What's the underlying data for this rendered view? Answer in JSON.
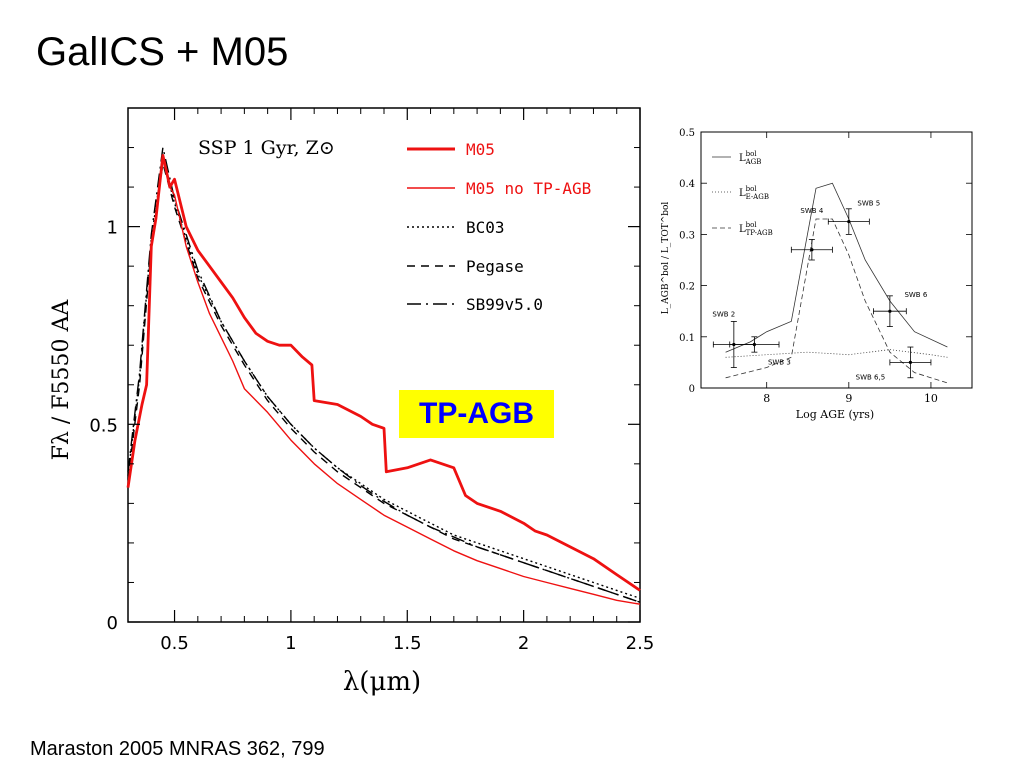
{
  "slide": {
    "title": "GalICS + M05",
    "citation": "Maraston 2005 MNRAS 362, 799",
    "highlight_label": "TP-AGB"
  },
  "colors": {
    "m05": "#ee1111",
    "black": "#000000",
    "highlight_bg": "#ffff00",
    "highlight_text": "#0000ff"
  },
  "chart_data": [
    {
      "type": "line",
      "title": "SSP 1 Gyr, Z⊙",
      "xlabel": "λ(μm)",
      "ylabel": "Fλ / F5550 AA",
      "xlim": [
        0.3,
        2.5
      ],
      "ylim": [
        0,
        1.3
      ],
      "x_ticks": [
        "0.5",
        "1",
        "1.5",
        "2",
        "2.5"
      ],
      "y_ticks": [
        "0",
        "0.5",
        "1"
      ],
      "legend_position": "top-right",
      "series": [
        {
          "name": "M05",
          "style": "solid-thick",
          "color": "#ee1111",
          "x": [
            0.3,
            0.33,
            0.36,
            0.38,
            0.4,
            0.42,
            0.45,
            0.48,
            0.5,
            0.55,
            0.6,
            0.65,
            0.7,
            0.75,
            0.8,
            0.85,
            0.9,
            0.95,
            1.0,
            1.05,
            1.09,
            1.1,
            1.2,
            1.3,
            1.35,
            1.4,
            1.41,
            1.5,
            1.6,
            1.7,
            1.75,
            1.8,
            1.9,
            2.0,
            2.05,
            2.1,
            2.2,
            2.3,
            2.4,
            2.5
          ],
          "y": [
            0.34,
            0.46,
            0.55,
            0.6,
            0.95,
            1.02,
            1.18,
            1.1,
            1.12,
            1.0,
            0.94,
            0.9,
            0.86,
            0.82,
            0.77,
            0.73,
            0.71,
            0.7,
            0.7,
            0.67,
            0.65,
            0.56,
            0.55,
            0.52,
            0.5,
            0.49,
            0.38,
            0.39,
            0.41,
            0.39,
            0.32,
            0.3,
            0.28,
            0.25,
            0.23,
            0.22,
            0.19,
            0.16,
            0.12,
            0.08
          ]
        },
        {
          "name": "M05 no TP-AGB",
          "style": "solid-thin",
          "color": "#ee1111",
          "x": [
            0.3,
            0.33,
            0.36,
            0.38,
            0.4,
            0.42,
            0.45,
            0.48,
            0.5,
            0.55,
            0.6,
            0.65,
            0.7,
            0.75,
            0.8,
            0.9,
            1.0,
            1.1,
            1.2,
            1.3,
            1.4,
            1.5,
            1.6,
            1.7,
            1.8,
            1.9,
            2.0,
            2.1,
            2.2,
            2.3,
            2.4,
            2.5
          ],
          "y": [
            0.34,
            0.46,
            0.55,
            0.6,
            0.95,
            1.02,
            1.18,
            1.1,
            1.08,
            0.95,
            0.86,
            0.78,
            0.72,
            0.66,
            0.59,
            0.53,
            0.46,
            0.4,
            0.35,
            0.31,
            0.27,
            0.24,
            0.21,
            0.18,
            0.155,
            0.135,
            0.115,
            0.1,
            0.085,
            0.07,
            0.055,
            0.045
          ]
        },
        {
          "name": "BC03",
          "style": "dotted",
          "color": "#000000",
          "x": [
            0.3,
            0.35,
            0.4,
            0.45,
            0.5,
            0.6,
            0.7,
            0.8,
            0.9,
            1.0,
            1.1,
            1.2,
            1.3,
            1.4,
            1.5,
            1.6,
            1.7,
            1.8,
            1.9,
            2.0,
            2.1,
            2.2,
            2.3,
            2.4,
            2.5
          ],
          "y": [
            0.37,
            0.62,
            0.97,
            1.17,
            1.06,
            0.88,
            0.76,
            0.66,
            0.57,
            0.5,
            0.44,
            0.39,
            0.35,
            0.31,
            0.28,
            0.25,
            0.22,
            0.2,
            0.18,
            0.16,
            0.14,
            0.12,
            0.1,
            0.08,
            0.06
          ]
        },
        {
          "name": "Pegase",
          "style": "dashed",
          "color": "#000000",
          "x": [
            0.3,
            0.35,
            0.4,
            0.45,
            0.5,
            0.6,
            0.7,
            0.8,
            0.9,
            1.0,
            1.1,
            1.2,
            1.3,
            1.4,
            1.5,
            1.6,
            1.7,
            1.8,
            1.9,
            2.0,
            2.1,
            2.2,
            2.3,
            2.4,
            2.5
          ],
          "y": [
            0.36,
            0.6,
            0.95,
            1.16,
            1.05,
            0.87,
            0.75,
            0.65,
            0.56,
            0.49,
            0.43,
            0.38,
            0.34,
            0.3,
            0.27,
            0.24,
            0.21,
            0.19,
            0.17,
            0.15,
            0.13,
            0.11,
            0.09,
            0.07,
            0.05
          ]
        },
        {
          "name": "SB99v5.0",
          "style": "long-dash",
          "color": "#000000",
          "x": [
            0.3,
            0.35,
            0.4,
            0.45,
            0.5,
            0.6,
            0.7,
            0.8,
            0.9,
            1.0,
            1.1,
            1.2,
            1.3,
            1.4,
            1.5,
            1.6,
            1.7,
            1.8,
            1.9,
            2.0,
            2.1,
            2.2,
            2.3,
            2.4,
            2.5
          ],
          "y": [
            0.38,
            0.63,
            0.98,
            1.2,
            1.07,
            0.89,
            0.76,
            0.66,
            0.57,
            0.5,
            0.44,
            0.39,
            0.345,
            0.305,
            0.27,
            0.24,
            0.215,
            0.19,
            0.17,
            0.15,
            0.13,
            0.11,
            0.09,
            0.07,
            0.05
          ]
        }
      ]
    },
    {
      "type": "line",
      "xlabel": "Log AGE (yrs)",
      "ylabel": "L_AGB^bol / L_TOT^bol",
      "xlim": [
        7.2,
        10.5
      ],
      "ylim": [
        0,
        0.5
      ],
      "x_ticks": [
        "8",
        "9",
        "10"
      ],
      "y_ticks": [
        "0",
        "0.1",
        "0.2",
        "0.3",
        "0.4",
        "0.5"
      ],
      "legend_position": "top-left",
      "series": [
        {
          "name": "L_AGB^bol",
          "label_main": "L",
          "label_sup": "bol",
          "label_sub": "AGB",
          "style": "solid",
          "x": [
            7.5,
            7.8,
            8.0,
            8.3,
            8.6,
            8.8,
            9.0,
            9.2,
            9.5,
            9.8,
            10.2
          ],
          "y": [
            0.07,
            0.09,
            0.11,
            0.13,
            0.39,
            0.4,
            0.33,
            0.25,
            0.17,
            0.11,
            0.08
          ]
        },
        {
          "name": "L_E-AGB^bol",
          "label_main": "L",
          "label_sup": "bol",
          "label_sub": "E-AGB",
          "style": "dotted",
          "x": [
            7.5,
            8.0,
            8.5,
            9.0,
            9.5,
            10.0,
            10.2
          ],
          "y": [
            0.06,
            0.065,
            0.07,
            0.065,
            0.075,
            0.065,
            0.06
          ]
        },
        {
          "name": "L_TP-AGB^bol",
          "label_main": "L",
          "label_sup": "bol",
          "label_sub": "TP-AGB",
          "style": "dashed",
          "x": [
            7.5,
            8.0,
            8.3,
            8.6,
            8.8,
            9.0,
            9.2,
            9.5,
            9.8,
            10.2
          ],
          "y": [
            0.02,
            0.04,
            0.06,
            0.33,
            0.33,
            0.26,
            0.17,
            0.07,
            0.03,
            0.01
          ]
        }
      ],
      "points": [
        {
          "label": "SWB 2",
          "x": 7.6,
          "y": 0.085,
          "xerr": 0.25,
          "yerr": 0.045
        },
        {
          "label": "SWB 3",
          "x": 7.85,
          "y": 0.085,
          "xerr": 0.3,
          "yerr": 0.015
        },
        {
          "label": "SWB 4",
          "x": 8.55,
          "y": 0.27,
          "xerr": 0.25,
          "yerr": 0.02
        },
        {
          "label": "SWB 5",
          "x": 9.0,
          "y": 0.325,
          "xerr": 0.25,
          "yerr": 0.025
        },
        {
          "label": "SWB 6",
          "x": 9.5,
          "y": 0.15,
          "xerr": 0.2,
          "yerr": 0.03
        },
        {
          "label": "SWB 6,5",
          "x": 9.75,
          "y": 0.05,
          "xerr": 0.25,
          "yerr": 0.03
        }
      ]
    }
  ]
}
